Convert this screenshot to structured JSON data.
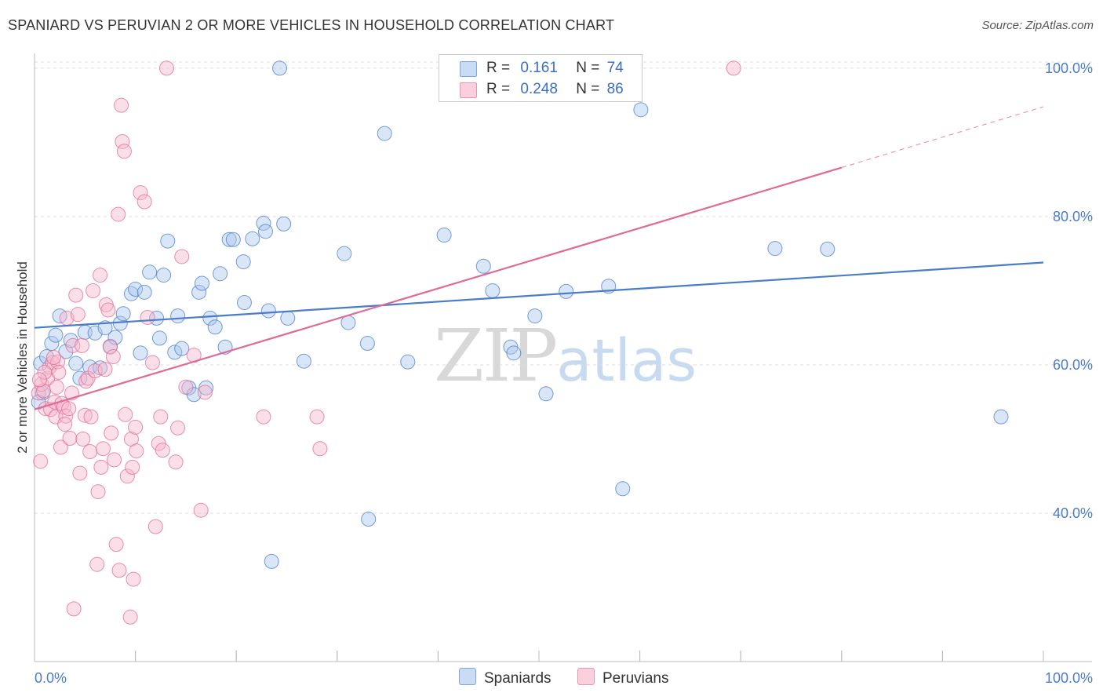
{
  "title": "SPANIARD VS PERUVIAN 2 OR MORE VEHICLES IN HOUSEHOLD CORRELATION CHART",
  "source": "Source: ZipAtlas.com",
  "watermark": {
    "zip": "ZIP",
    "atlas": "atlas"
  },
  "legend": {
    "rows": [
      {
        "r_label": "R =",
        "r_value": "0.161",
        "n_label": "N =",
        "n_value": "74",
        "color": "#aac8ee"
      },
      {
        "r_label": "R =",
        "r_value": "0.248",
        "n_label": "N =",
        "n_value": "86",
        "color": "#f6b8cb"
      }
    ]
  },
  "bottom_legend": [
    {
      "label": "Spaniards",
      "color": "#aac8ee"
    },
    {
      "label": "Peruvians",
      "color": "#f6b8cb"
    }
  ],
  "chart_data": {
    "type": "scatter",
    "title": "SPANIARD VS PERUVIAN 2 OR MORE VEHICLES IN HOUSEHOLD CORRELATION CHART",
    "xlabel": "",
    "ylabel": "2 or more Vehicles in Household",
    "xlim": [
      0,
      100
    ],
    "ylim": [
      20,
      102
    ],
    "x_tick_labels": [
      "0.0%",
      "100.0%"
    ],
    "y_ticks": [
      40,
      60,
      80,
      100
    ],
    "y_tick_labels": [
      "40.0%",
      "60.0%",
      "80.0%",
      "100.0%"
    ],
    "grid": true,
    "series": [
      {
        "name": "Spaniards",
        "color": "#4a7cc9",
        "fill": "#aac8ee",
        "trend": {
          "x0": 0,
          "y0": 65.0,
          "x1": 100,
          "y1": 73.8
        },
        "points": [
          [
            0.6,
            60.2
          ],
          [
            0.8,
            56.2
          ],
          [
            1.2,
            61.1
          ],
          [
            1.7,
            62.9
          ],
          [
            2.1,
            64.0
          ],
          [
            2.5,
            66.6
          ],
          [
            3.1,
            61.8
          ],
          [
            3.6,
            63.3
          ],
          [
            4.1,
            60.2
          ],
          [
            4.5,
            58.2
          ],
          [
            5.0,
            64.4
          ],
          [
            5.5,
            59.7
          ],
          [
            6.0,
            64.3
          ],
          [
            6.5,
            59.6
          ],
          [
            7.0,
            65.0
          ],
          [
            7.5,
            62.5
          ],
          [
            8.0,
            63.7
          ],
          [
            8.5,
            65.6
          ],
          [
            8.8,
            66.9
          ],
          [
            9.6,
            69.6
          ],
          [
            10.0,
            70.2
          ],
          [
            10.5,
            61.6
          ],
          [
            10.9,
            69.8
          ],
          [
            11.4,
            72.5
          ],
          [
            12.1,
            66.3
          ],
          [
            12.4,
            63.6
          ],
          [
            12.8,
            72.1
          ],
          [
            13.2,
            76.7
          ],
          [
            13.9,
            61.7
          ],
          [
            14.2,
            66.6
          ],
          [
            14.6,
            62.2
          ],
          [
            15.3,
            56.9
          ],
          [
            15.8,
            56.0
          ],
          [
            16.3,
            69.8
          ],
          [
            16.6,
            71.0
          ],
          [
            17.0,
            56.9
          ],
          [
            17.4,
            66.3
          ],
          [
            17.9,
            65.1
          ],
          [
            18.4,
            72.3
          ],
          [
            18.9,
            62.4
          ],
          [
            19.3,
            76.9
          ],
          [
            19.7,
            76.9
          ],
          [
            20.7,
            73.9
          ],
          [
            20.8,
            68.4
          ],
          [
            21.6,
            77.0
          ],
          [
            22.7,
            79.1
          ],
          [
            22.9,
            78.0
          ],
          [
            23.2,
            67.3
          ],
          [
            23.5,
            33.5
          ],
          [
            24.3,
            100.0
          ],
          [
            24.7,
            79.0
          ],
          [
            25.1,
            66.3
          ],
          [
            26.7,
            60.5
          ],
          [
            30.7,
            75.0
          ],
          [
            31.1,
            65.7
          ],
          [
            33.0,
            62.9
          ],
          [
            33.1,
            39.2
          ],
          [
            34.7,
            91.2
          ],
          [
            37.0,
            60.4
          ],
          [
            40.6,
            77.5
          ],
          [
            44.5,
            73.3
          ],
          [
            45.4,
            70.0
          ],
          [
            47.2,
            62.4
          ],
          [
            47.5,
            61.6
          ],
          [
            49.6,
            66.6
          ],
          [
            50.7,
            56.1
          ],
          [
            52.7,
            69.9
          ],
          [
            56.9,
            70.6
          ],
          [
            58.3,
            43.3
          ],
          [
            60.1,
            94.4
          ],
          [
            73.4,
            75.7
          ],
          [
            78.6,
            75.6
          ],
          [
            95.8,
            53.0
          ],
          [
            0.4,
            55.0
          ]
        ]
      },
      {
        "name": "Peruvians",
        "color": "#e06a96",
        "fill": "#f6b8cb",
        "trend": {
          "x0": 0,
          "y0": 54.0,
          "x1": 80,
          "y1": 86.6,
          "dash_x1": 100,
          "dash_y1": 94.8
        },
        "points": [
          [
            0.4,
            56.2
          ],
          [
            0.6,
            47.0
          ],
          [
            0.7,
            57.4
          ],
          [
            0.9,
            56.5
          ],
          [
            1.1,
            54.1
          ],
          [
            1.3,
            58.2
          ],
          [
            1.5,
            59.7
          ],
          [
            1.6,
            54.0
          ],
          [
            1.8,
            60.3
          ],
          [
            2.0,
            55.0
          ],
          [
            2.1,
            53.0
          ],
          [
            2.3,
            60.4
          ],
          [
            2.4,
            59.0
          ],
          [
            2.6,
            48.9
          ],
          [
            2.7,
            54.8
          ],
          [
            2.9,
            54.3
          ],
          [
            3.1,
            53.1
          ],
          [
            3.2,
            66.3
          ],
          [
            3.4,
            54.1
          ],
          [
            3.5,
            50.1
          ],
          [
            3.7,
            56.2
          ],
          [
            3.8,
            62.6
          ],
          [
            3.9,
            27.1
          ],
          [
            4.1,
            69.4
          ],
          [
            4.3,
            66.8
          ],
          [
            4.5,
            45.4
          ],
          [
            4.7,
            62.6
          ],
          [
            4.8,
            50.0
          ],
          [
            5.0,
            53.2
          ],
          [
            5.1,
            57.8
          ],
          [
            5.3,
            58.2
          ],
          [
            5.5,
            48.3
          ],
          [
            5.6,
            53.0
          ],
          [
            5.8,
            70.0
          ],
          [
            6.0,
            59.2
          ],
          [
            6.2,
            33.1
          ],
          [
            6.3,
            42.9
          ],
          [
            6.5,
            72.1
          ],
          [
            6.6,
            46.2
          ],
          [
            6.8,
            48.7
          ],
          [
            7.0,
            59.4
          ],
          [
            7.1,
            68.1
          ],
          [
            7.3,
            67.4
          ],
          [
            7.5,
            62.4
          ],
          [
            7.6,
            50.8
          ],
          [
            7.8,
            61.1
          ],
          [
            7.9,
            47.2
          ],
          [
            8.1,
            35.8
          ],
          [
            8.3,
            80.3
          ],
          [
            8.4,
            32.3
          ],
          [
            8.6,
            95.0
          ],
          [
            8.7,
            90.1
          ],
          [
            8.9,
            88.8
          ],
          [
            9.0,
            53.3
          ],
          [
            9.2,
            45.0
          ],
          [
            9.5,
            26.0
          ],
          [
            9.6,
            50.0
          ],
          [
            9.7,
            46.2
          ],
          [
            9.8,
            31.1
          ],
          [
            10.0,
            51.6
          ],
          [
            10.1,
            48.4
          ],
          [
            10.5,
            83.2
          ],
          [
            10.9,
            82.0
          ],
          [
            11.2,
            66.4
          ],
          [
            11.7,
            60.3
          ],
          [
            12.0,
            38.2
          ],
          [
            12.3,
            49.4
          ],
          [
            12.5,
            53.0
          ],
          [
            12.7,
            48.5
          ],
          [
            13.1,
            100.0
          ],
          [
            14.0,
            46.9
          ],
          [
            14.2,
            51.5
          ],
          [
            14.6,
            74.6
          ],
          [
            15.0,
            57.0
          ],
          [
            15.8,
            61.3
          ],
          [
            16.5,
            40.4
          ],
          [
            16.9,
            56.3
          ],
          [
            22.7,
            53.0
          ],
          [
            28.0,
            53.0
          ],
          [
            28.3,
            48.7
          ],
          [
            69.3,
            100.0
          ],
          [
            1.0,
            59.0
          ],
          [
            2.2,
            57.0
          ],
          [
            3.0,
            52.0
          ],
          [
            1.9,
            61.0
          ],
          [
            0.5,
            58.0
          ]
        ]
      }
    ]
  }
}
